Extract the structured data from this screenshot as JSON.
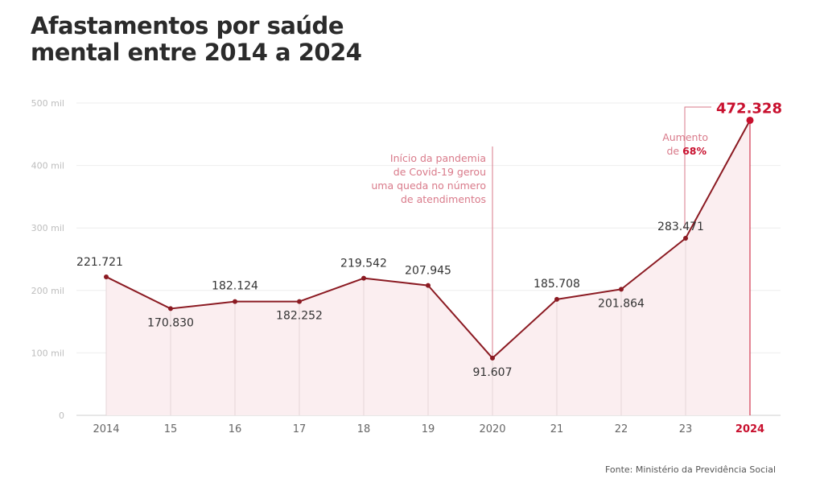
{
  "header": {
    "title_line1": "Afastamentos por saúde",
    "title_line2": "mental entre 2014 a 2024"
  },
  "source": "Fonte: Ministério da Previdência Social",
  "colors": {
    "line": "#8b1a22",
    "accent": "#c8102e",
    "area": "#fbeef0",
    "annotation": "#d97a8a",
    "grid": "#eeeeee",
    "tick": "#bdbdbd",
    "label": "#333333"
  },
  "chart_data": {
    "type": "area",
    "title": "Afastamentos por saúde mental entre 2014 a 2024",
    "x_tick_labels": [
      "2014",
      "15",
      "16",
      "17",
      "18",
      "19",
      "2020",
      "21",
      "22",
      "23",
      "2024"
    ],
    "x": [
      2014,
      2015,
      2016,
      2017,
      2018,
      2019,
      2020,
      2021,
      2022,
      2023,
      2024
    ],
    "values": [
      221721,
      170830,
      182124,
      182252,
      219542,
      207945,
      91607,
      185708,
      201864,
      283471,
      472328
    ],
    "value_labels": [
      "221.721",
      "170.830",
      "182.124",
      "182.252",
      "219.542",
      "207.945",
      "91.607",
      "185.708",
      "201.864",
      "283.471",
      "472.328"
    ],
    "ylim": [
      0,
      500000
    ],
    "y_ticks": [
      0,
      100000,
      200000,
      300000,
      400000,
      500000
    ],
    "y_tick_labels": [
      "0",
      "100 mil",
      "200 mil",
      "300 mil",
      "400 mil",
      "500 mil"
    ],
    "grid": true,
    "annotations": {
      "pandemic": [
        "Início da pandemia",
        "de Covid-19 gerou",
        "uma queda no número",
        "de atendimentos"
      ],
      "increase_line1": "Aumento",
      "increase_prefix": "de",
      "increase_value": "68%"
    }
  }
}
